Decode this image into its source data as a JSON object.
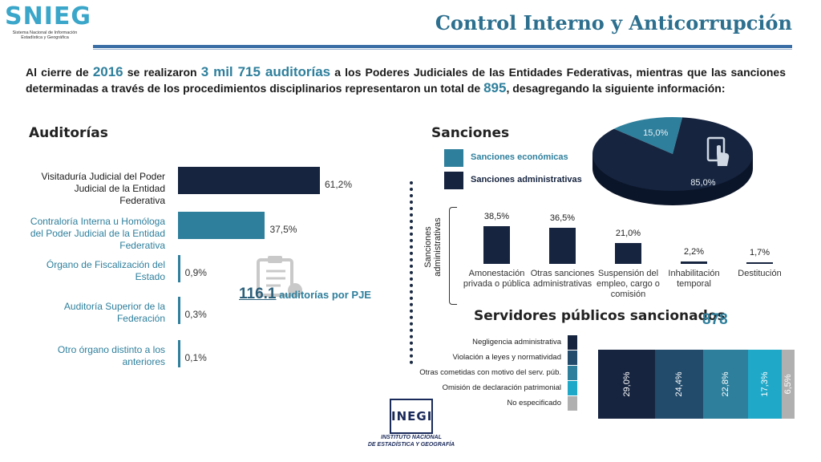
{
  "header": {
    "logo_word": "SNIEG",
    "logo_sub": "Sistema Nacional de Información Estadística y Geográfica",
    "title": "Control Interno y Anticorrupción"
  },
  "intro": {
    "p1": "Al cierre de ",
    "year": "2016",
    "p2": " se realizaron ",
    "audits": "3 mil 715 auditorías",
    "p3": " a los  Poderes Judiciales de las Entidades Federativas, mientras que las sanciones determinadas a través de los procedimientos disciplinarios representaron un total de ",
    "sanctions": "895",
    "p4": ", desagregando la siguiente información:"
  },
  "colors": {
    "navy": "#16243f",
    "teal": "#2e7f9c",
    "mid_blue": "#214a6b",
    "cyan": "#20a8c8",
    "gray": "#b0b0b0",
    "label_blue": "#2e7f9c"
  },
  "chart_data": [
    {
      "type": "bar",
      "title": "Auditorías",
      "orientation": "horizontal",
      "categories": [
        "Visitaduría Judicial del Poder Judicial de la Entidad Federativa",
        "Contraloría Interna u Homóloga del Poder Judicial de la Entidad Federativa",
        "Órgano de Fiscalización del Estado",
        "Auditoría Superior de la Federación",
        "Otro órgano distinto a los anteriores"
      ],
      "values": [
        61.2,
        37.5,
        0.9,
        0.3,
        0.1
      ],
      "value_labels": [
        "61,2%",
        "37,5%",
        "0,9%",
        "0,3%",
        "0,1%"
      ],
      "annotation": {
        "number": "116.1",
        "text": " auditorías por PJE"
      }
    },
    {
      "type": "pie",
      "title": "Sanciones",
      "categories": [
        "Sanciones económicas",
        "Sanciones administrativas"
      ],
      "values": [
        15.0,
        85.0
      ],
      "value_labels": [
        "15,0%",
        "85,0%"
      ]
    },
    {
      "type": "bar",
      "ylabel": "Sanciones administrativas",
      "categories": [
        "Amonestación privada o pública",
        "Otras sanciones administrativas",
        "Suspensión del empleo, cargo o comisión",
        "Inhabilitación temporal",
        "Destitución"
      ],
      "values": [
        38.5,
        36.5,
        21.0,
        2.2,
        1.7
      ],
      "value_labels": [
        "38,5%",
        "36,5%",
        "21,0%",
        "2,2%",
        "1,7%"
      ]
    },
    {
      "type": "bar",
      "stacked": true,
      "title": "Servidores públicos sancionados",
      "total": "878",
      "series": [
        {
          "name": "Negligencia administrativa",
          "values": [
            29.0
          ],
          "label": "29,0%"
        },
        {
          "name": "Violación a leyes y normatividad",
          "values": [
            24.4
          ],
          "label": "24,4%"
        },
        {
          "name": "Otras cometidas con motivo del serv. púb.",
          "values": [
            22.8
          ],
          "label": "22,8%"
        },
        {
          "name": "Omisión de declaración patrimonial",
          "values": [
            17.3
          ],
          "label": "17,3%"
        },
        {
          "name": "No especificado",
          "values": [
            6.5
          ],
          "label": "6,5%"
        }
      ]
    }
  ],
  "footer": {
    "inegi_word": "INEGI",
    "inegi_line1": "INSTITUTO NACIONAL",
    "inegi_line2": "DE ESTADÍSTICA Y GEOGRAFÍA"
  }
}
